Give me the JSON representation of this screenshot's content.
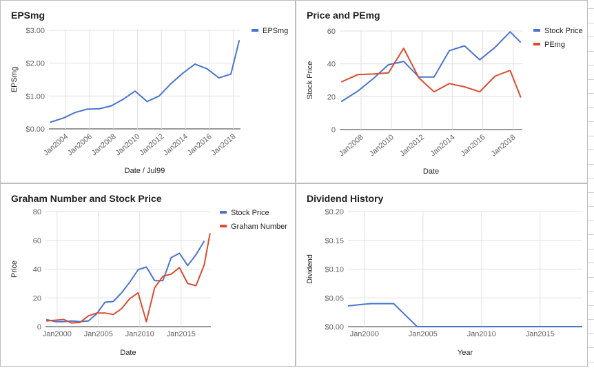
{
  "chart_data": [
    {
      "type": "line",
      "title": "EPSmg",
      "xlabel": "Date / Jul99",
      "ylabel": "EPSmg",
      "xlim": [
        2002.6,
        2018.6
      ],
      "ylim": [
        0,
        3
      ],
      "yticks": [
        {
          "v": 0,
          "label": "$0.00"
        },
        {
          "v": 1,
          "label": "$1.00"
        },
        {
          "v": 2,
          "label": "$2.00"
        },
        {
          "v": 3,
          "label": "$3.00"
        }
      ],
      "xticks": [
        {
          "v": 2004,
          "label": "Jan2004"
        },
        {
          "v": 2006,
          "label": "Jan2006"
        },
        {
          "v": 2008,
          "label": "Jan2008"
        },
        {
          "v": 2010,
          "label": "Jan2010"
        },
        {
          "v": 2012,
          "label": "Jan2012"
        },
        {
          "v": 2014,
          "label": "Jan2014"
        },
        {
          "v": 2016,
          "label": "Jan2016"
        },
        {
          "v": 2018,
          "label": "Jan2018"
        }
      ],
      "xtick_rotate": true,
      "legend": "right",
      "series": [
        {
          "name": "EPSmg",
          "color": "#4a74d0",
          "points": [
            [
              2002.7,
              0.2
            ],
            [
              2003.8,
              0.33
            ],
            [
              2004.8,
              0.5
            ],
            [
              2005.8,
              0.6
            ],
            [
              2006.8,
              0.61
            ],
            [
              2007.8,
              0.7
            ],
            [
              2008.8,
              0.9
            ],
            [
              2009.8,
              1.15
            ],
            [
              2010.8,
              0.83
            ],
            [
              2011.8,
              1.0
            ],
            [
              2012.8,
              1.38
            ],
            [
              2013.8,
              1.7
            ],
            [
              2014.8,
              1.97
            ],
            [
              2015.8,
              1.83
            ],
            [
              2016.8,
              1.55
            ],
            [
              2017.8,
              1.67
            ],
            [
              2018.5,
              2.7
            ]
          ]
        }
      ]
    },
    {
      "type": "line",
      "title": "Price and PEmg",
      "xlabel": "Date",
      "ylabel": "Stock Price",
      "xlim": [
        2006.6,
        2018.6
      ],
      "ylim": [
        0,
        60
      ],
      "yticks": [
        {
          "v": 0,
          "label": "0"
        },
        {
          "v": 20,
          "label": "20"
        },
        {
          "v": 40,
          "label": "40"
        },
        {
          "v": 60,
          "label": "60"
        }
      ],
      "xticks": [
        {
          "v": 2008,
          "label": "Jan2008"
        },
        {
          "v": 2010,
          "label": "Jan2010"
        },
        {
          "v": 2012,
          "label": "Jan2012"
        },
        {
          "v": 2014,
          "label": "Jan2014"
        },
        {
          "v": 2016,
          "label": "Jan2016"
        },
        {
          "v": 2018,
          "label": "Jan2018"
        }
      ],
      "xtick_rotate": true,
      "legend": "right",
      "series": [
        {
          "name": "Stock Price",
          "color": "#4a74d0",
          "points": [
            [
              2006.7,
              17
            ],
            [
              2007.8,
              23.5
            ],
            [
              2008.8,
              31
            ],
            [
              2009.8,
              39.5
            ],
            [
              2010.8,
              41.5
            ],
            [
              2011.8,
              32
            ],
            [
              2012.8,
              32
            ],
            [
              2013.8,
              48
            ],
            [
              2014.8,
              51
            ],
            [
              2015.8,
              42.5
            ],
            [
              2016.8,
              50
            ],
            [
              2017.8,
              59.5
            ],
            [
              2018.5,
              53
            ]
          ]
        },
        {
          "name": "PEmg",
          "color": "#dc4b2f",
          "points": [
            [
              2006.7,
              29
            ],
            [
              2007.8,
              33.5
            ],
            [
              2008.8,
              33.8
            ],
            [
              2009.8,
              34.5
            ],
            [
              2010.8,
              49.5
            ],
            [
              2011.8,
              31.5
            ],
            [
              2012.8,
              23
            ],
            [
              2013.8,
              28
            ],
            [
              2014.8,
              26
            ],
            [
              2015.8,
              23
            ],
            [
              2016.8,
              32.5
            ],
            [
              2017.8,
              36
            ],
            [
              2018.5,
              19.5
            ]
          ]
        }
      ]
    },
    {
      "type": "line",
      "title": "Graham Number and Stock Price",
      "xlabel": "Date",
      "ylabel": "Price",
      "xlim": [
        1998.6,
        2018.6
      ],
      "ylim": [
        0,
        80
      ],
      "yticks": [
        {
          "v": 0,
          "label": "0"
        },
        {
          "v": 20,
          "label": "20"
        },
        {
          "v": 40,
          "label": "40"
        },
        {
          "v": 60,
          "label": "60"
        },
        {
          "v": 80,
          "label": "80"
        }
      ],
      "xticks": [
        {
          "v": 2000,
          "label": "Jan2000"
        },
        {
          "v": 2005,
          "label": "Jan2005"
        },
        {
          "v": 2010,
          "label": "Jan2010"
        },
        {
          "v": 2015,
          "label": "Jan2015"
        }
      ],
      "xtick_rotate": false,
      "legend": "right",
      "series": [
        {
          "name": "Stock Price",
          "color": "#4a74d0",
          "points": [
            [
              1998.7,
              5
            ],
            [
              1999.8,
              3.5
            ],
            [
              2000.8,
              3.5
            ],
            [
              2001.8,
              4
            ],
            [
              2002.8,
              3.5
            ],
            [
              2003.8,
              4
            ],
            [
              2004.8,
              9
            ],
            [
              2005.8,
              17
            ],
            [
              2006.8,
              17.5
            ],
            [
              2007.8,
              23.5
            ],
            [
              2008.8,
              31
            ],
            [
              2009.8,
              39.5
            ],
            [
              2010.8,
              41.5
            ],
            [
              2011.8,
              32
            ],
            [
              2012.8,
              32
            ],
            [
              2013.8,
              48
            ],
            [
              2014.8,
              51
            ],
            [
              2015.8,
              42.5
            ],
            [
              2016.8,
              50
            ],
            [
              2017.8,
              59.5
            ]
          ]
        },
        {
          "name": "Graham Number",
          "color": "#dc4b2f",
          "points": [
            [
              1998.7,
              4
            ],
            [
              1999.8,
              4.5
            ],
            [
              2000.8,
              5
            ],
            [
              2001.8,
              2.5
            ],
            [
              2002.8,
              3
            ],
            [
              2003.8,
              7.5
            ],
            [
              2004.8,
              9.5
            ],
            [
              2005.8,
              9.5
            ],
            [
              2006.8,
              8.5
            ],
            [
              2007.8,
              12.5
            ],
            [
              2008.8,
              19.5
            ],
            [
              2009.8,
              23.5
            ],
            [
              2010.8,
              3.5
            ],
            [
              2011.8,
              27
            ],
            [
              2012.8,
              35
            ],
            [
              2013.8,
              36.5
            ],
            [
              2014.8,
              41
            ],
            [
              2015.8,
              30
            ],
            [
              2016.8,
              28.5
            ],
            [
              2017.8,
              43
            ],
            [
              2018.5,
              65
            ]
          ]
        }
      ]
    },
    {
      "type": "line",
      "title": "Dividend History",
      "xlabel": "Year",
      "ylabel": "Dividend",
      "xlim": [
        1998.6,
        2018.6
      ],
      "ylim": [
        0,
        0.2
      ],
      "yticks": [
        {
          "v": 0,
          "label": "$0.00"
        },
        {
          "v": 0.05,
          "label": "$0.05"
        },
        {
          "v": 0.1,
          "label": "$0.10"
        },
        {
          "v": 0.15,
          "label": "$0.15"
        },
        {
          "v": 0.2,
          "label": "$0.20"
        }
      ],
      "xticks": [
        {
          "v": 2000,
          "label": "Jan2000"
        },
        {
          "v": 2005,
          "label": "Jan2005"
        },
        {
          "v": 2010,
          "label": "Jan2010"
        },
        {
          "v": 2015,
          "label": "Jan2015"
        }
      ],
      "xtick_rotate": false,
      "legend": "none",
      "series": [
        {
          "name": "",
          "color": "#4a74d0",
          "points": [
            [
              1998.6,
              0.036
            ],
            [
              1999.5,
              0.038
            ],
            [
              2000.5,
              0.04
            ],
            [
              2001.5,
              0.04
            ],
            [
              2002.5,
              0.04
            ],
            [
              2003.5,
              0.02
            ],
            [
              2004.5,
              0.0
            ],
            [
              2018.6,
              0.0
            ]
          ]
        }
      ]
    }
  ],
  "ui": {
    "gridline_color": "#e0e0e0",
    "baseline_color": "#333333",
    "panel_border_color": "#bdbdbd"
  }
}
